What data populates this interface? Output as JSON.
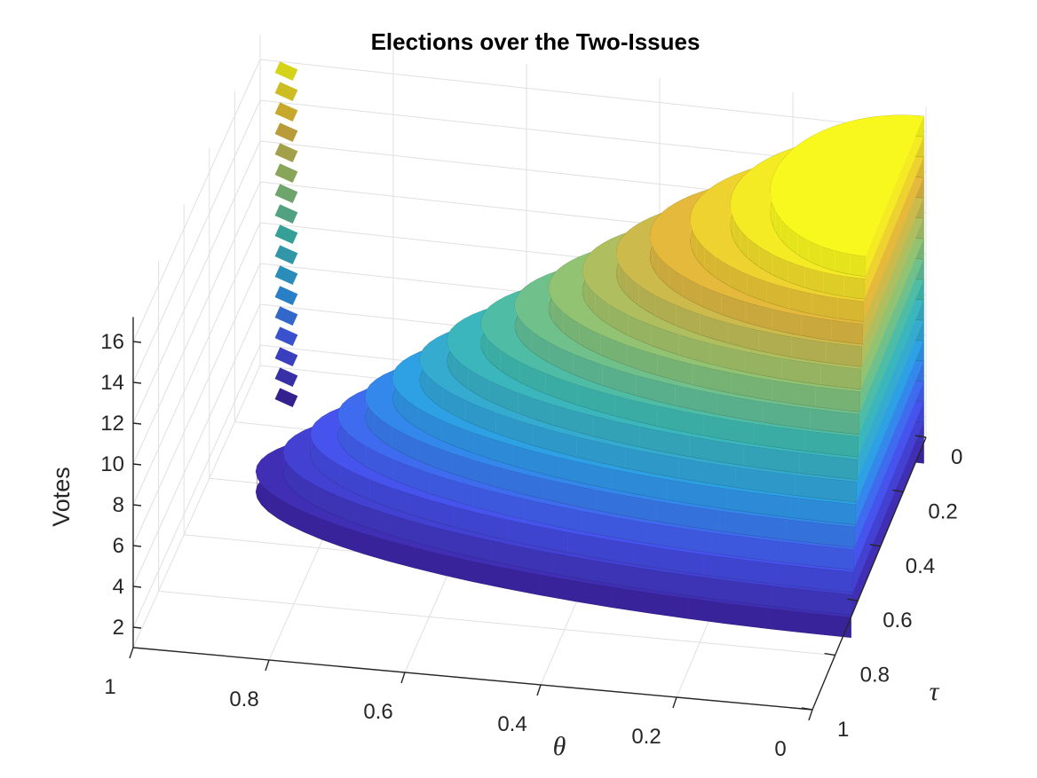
{
  "chart_data": {
    "type": "surface3d",
    "title": "Elections over the Two-Issues",
    "xlabel": "θ",
    "ylabel": "τ",
    "zlabel": "Votes",
    "xlim": [
      0,
      1
    ],
    "ylim": [
      0,
      1
    ],
    "zlim": [
      0,
      16
    ],
    "x_ticks": [
      "1",
      "0.8",
      "0.6",
      "0.4",
      "0.2",
      "0"
    ],
    "y_ticks": [
      "0",
      "0.2",
      "0.4",
      "0.6",
      "0.8",
      "1"
    ],
    "z_ticks": [
      "2",
      "4",
      "6",
      "8",
      "10",
      "12",
      "14",
      "16"
    ],
    "grid": true,
    "colormap": [
      "#3e26a8",
      "#4756f2",
      "#2d9fe7",
      "#3fbbb2",
      "#98c46e",
      "#e4b53d",
      "#f9f81e"
    ],
    "levels": [
      {
        "votes": 0,
        "theta_max": 0.94
      },
      {
        "votes": 1,
        "theta_max": 0.9
      },
      {
        "votes": 2,
        "theta_max": 0.86
      },
      {
        "votes": 3,
        "theta_max": 0.82
      },
      {
        "votes": 4,
        "theta_max": 0.78
      },
      {
        "votes": 5,
        "theta_max": 0.74
      },
      {
        "votes": 6,
        "theta_max": 0.7
      },
      {
        "votes": 7,
        "theta_max": 0.66
      },
      {
        "votes": 8,
        "theta_max": 0.61
      },
      {
        "votes": 9,
        "theta_max": 0.56
      },
      {
        "votes": 10,
        "theta_max": 0.51
      },
      {
        "votes": 11,
        "theta_max": 0.46
      },
      {
        "votes": 12,
        "theta_max": 0.41
      },
      {
        "votes": 13,
        "theta_max": 0.36
      },
      {
        "votes": 14,
        "theta_max": 0.3
      },
      {
        "votes": 15,
        "theta_max": 0.24
      },
      {
        "votes": 16,
        "theta_max": 0.18
      }
    ]
  }
}
